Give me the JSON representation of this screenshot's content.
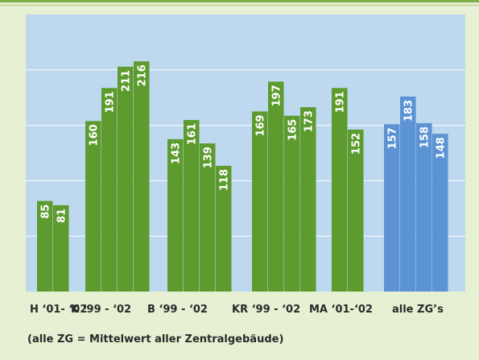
{
  "chart_data": {
    "type": "bar",
    "groups": [
      {
        "label": "H ‘01- ‘02",
        "color": "#5d9b2f",
        "values": [
          85,
          81
        ]
      },
      {
        "label": "K ‘99 - ‘02",
        "color": "#5d9b2f",
        "values": [
          160,
          191,
          211,
          216
        ]
      },
      {
        "label": "B ‘99 - ‘02",
        "color": "#5d9b2f",
        "values": [
          143,
          161,
          139,
          118
        ]
      },
      {
        "label": "KR ‘99 - ‘02",
        "color": "#5d9b2f",
        "values": [
          169,
          197,
          165,
          173
        ]
      },
      {
        "label": "MA ‘01-‘02",
        "color": "#5d9b2f",
        "values": [
          191,
          152
        ]
      },
      {
        "label": "alle ZG’s",
        "color": "#5b93d3",
        "values": [
          157,
          183,
          158,
          148
        ]
      }
    ],
    "note": "(alle ZG = Mittelwert aller Zentralgebäude)",
    "ylim": [
      0,
      260
    ],
    "yticks": [
      52,
      104,
      156,
      208
    ],
    "grid": true
  }
}
